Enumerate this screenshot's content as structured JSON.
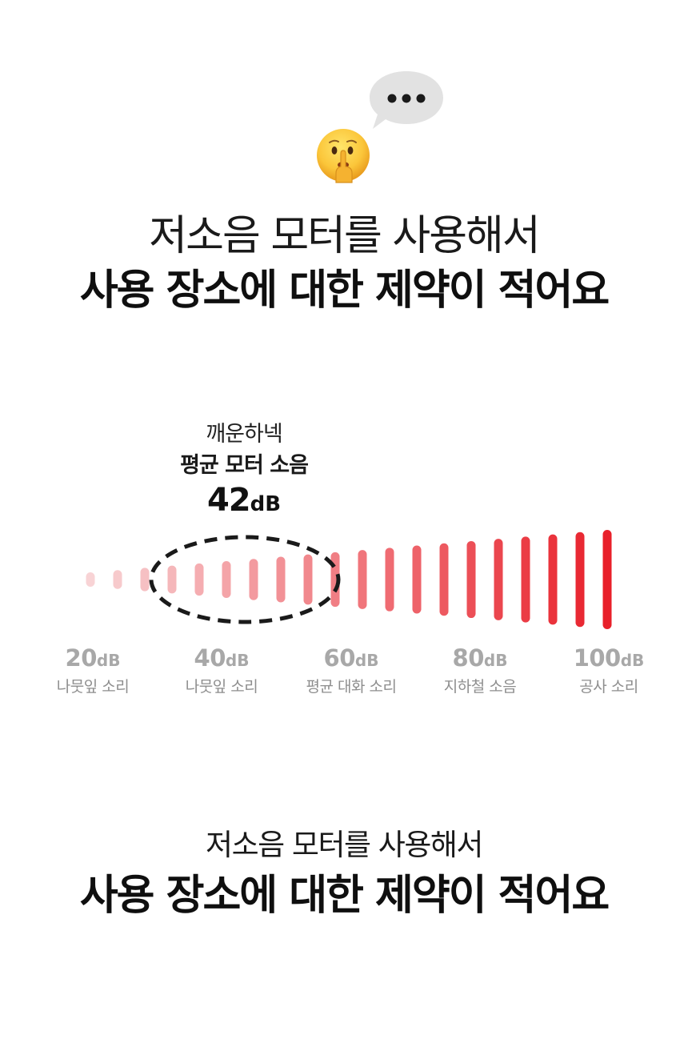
{
  "headline_top": {
    "line1": "저소음 모터를 사용해서",
    "line2": "사용 장소에 대한 제약이 적어요"
  },
  "callout": {
    "brand": "깨운하넥",
    "title": "평균 모터 소음",
    "value": "42",
    "unit": "dB"
  },
  "scale": [
    {
      "value": "20",
      "unit": "dB",
      "label": "나뭇잎 소리"
    },
    {
      "value": "40",
      "unit": "dB",
      "label": "나뭇잎 소리"
    },
    {
      "value": "60",
      "unit": "dB",
      "label": "평균 대화 소리"
    },
    {
      "value": "80",
      "unit": "dB",
      "label": "지하철 소음"
    },
    {
      "value": "100",
      "unit": "dB",
      "label": "공사 소리"
    }
  ],
  "headline_bottom": {
    "line1": "저소음 모터를 사용해서",
    "line2": "사용 장소에 대한 제약이 적어요"
  },
  "icons": {
    "bubble": "speech-bubble-icon",
    "emoji": "shushing-face-emoji"
  },
  "colors": {
    "bar_low": "#f8d3d5",
    "bar_high": "#e8202a",
    "scale_text": "#a8a8a8"
  }
}
